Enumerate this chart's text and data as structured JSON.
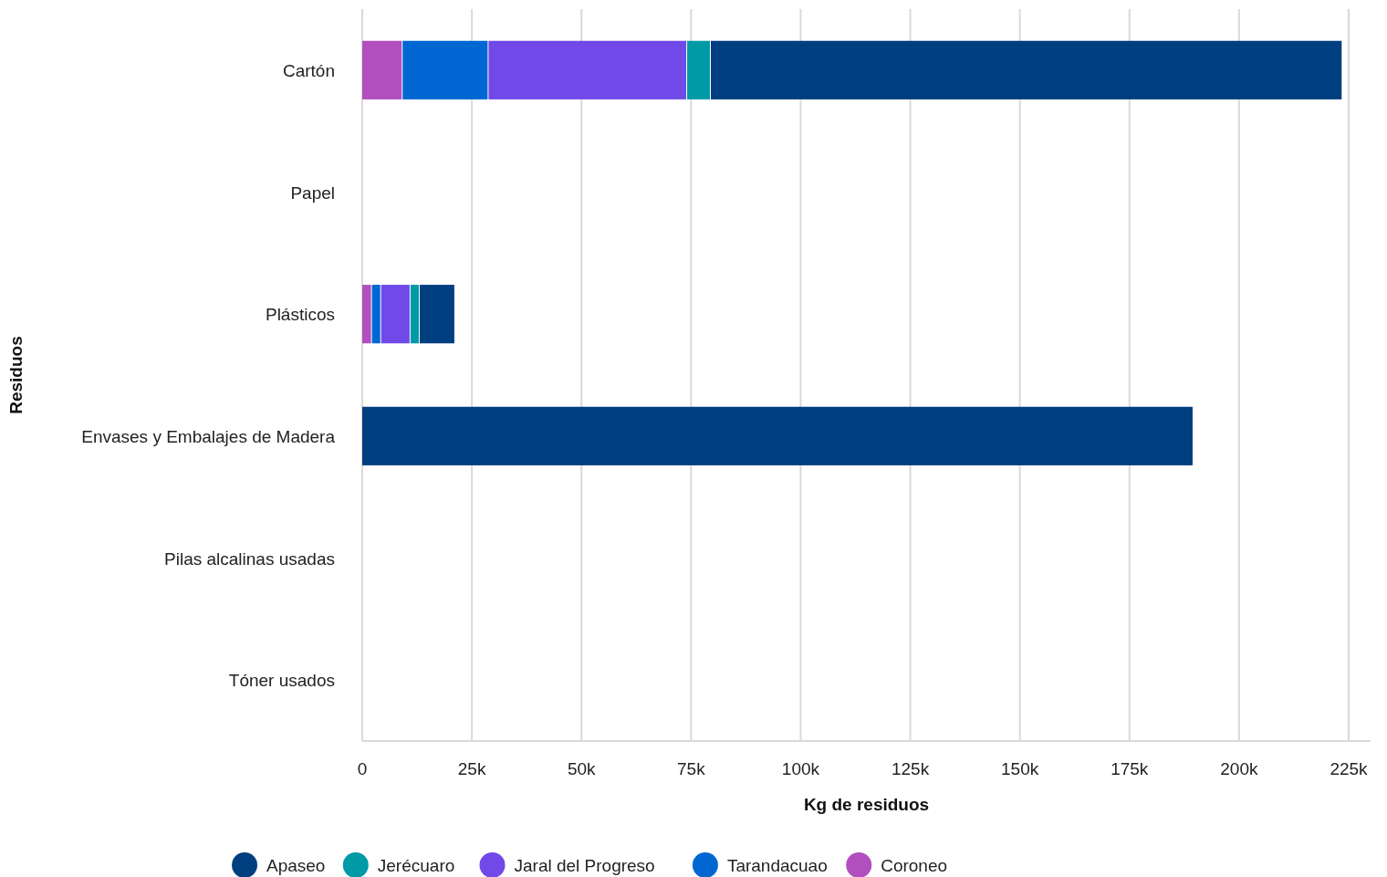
{
  "chart_data": {
    "type": "bar",
    "orientation": "horizontal",
    "stacked": true,
    "xlabel": "Kg de residuos",
    "ylabel": "Residuos",
    "categories": [
      "Cartón",
      "Papel",
      "Plásticos",
      "Envases y Embalajes de Madera",
      "Pilas alcalinas usadas",
      "Tóner usados"
    ],
    "series": [
      {
        "name": "Coroneo",
        "color": "#b04fbd",
        "values": [
          9000,
          null,
          2000,
          null,
          null,
          null
        ]
      },
      {
        "name": "Tarandacuao",
        "color": "#0067d2",
        "values": [
          19600,
          null,
          2100,
          null,
          null,
          null
        ]
      },
      {
        "name": "Jaral del Progreso",
        "color": "#7049e8",
        "values": [
          45300,
          null,
          6700,
          null,
          null,
          null
        ]
      },
      {
        "name": "Jerécuaro",
        "color": "#009aa6",
        "values": [
          5400,
          null,
          2100,
          null,
          null,
          null
        ]
      },
      {
        "name": "Apaseo",
        "color": "#003f7f",
        "values": [
          144100,
          null,
          8100,
          189400,
          null,
          null
        ]
      }
    ],
    "xlim": [
      0,
      230000
    ],
    "xticks": [
      0,
      {
        "value": 25000,
        "label": "25k"
      },
      {
        "value": 50000,
        "label": "50k"
      },
      {
        "value": 75000,
        "label": "75k"
      },
      {
        "value": 100000,
        "label": "100k"
      },
      {
        "value": 125000,
        "label": "125k"
      },
      {
        "value": 150000,
        "label": "150k"
      },
      {
        "value": 175000,
        "label": "175k"
      },
      {
        "value": 200000,
        "label": "200k"
      },
      {
        "value": 225000,
        "label": "225k"
      }
    ],
    "grid": "x",
    "legend": "bottom"
  }
}
